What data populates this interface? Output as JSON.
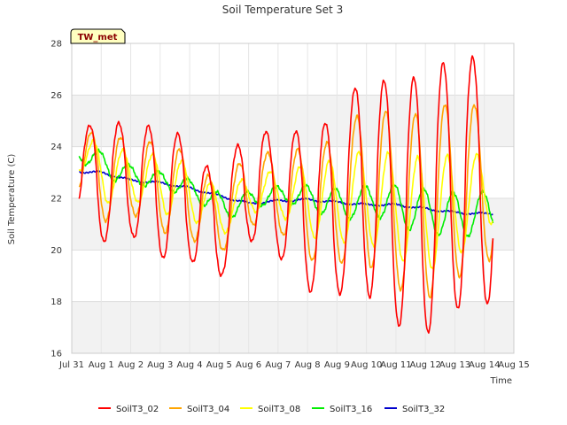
{
  "chart_data": {
    "type": "line",
    "title": "Soil Temperature Set 3",
    "xlabel": "Time",
    "ylabel": "Soil Temperature (C)",
    "site_label": "TW_met",
    "ylim": [
      16,
      28
    ],
    "xlim": [
      0,
      15
    ],
    "yticks": [
      16,
      18,
      20,
      22,
      24,
      26,
      28
    ],
    "xticks": [
      0,
      1,
      2,
      3,
      4,
      5,
      6,
      7,
      8,
      9,
      10,
      11,
      12,
      13,
      14,
      15
    ],
    "xtick_labels": [
      "Jul 31",
      "Aug 1",
      "Aug 2",
      "Aug 3",
      "Aug 4",
      "Aug 5",
      "Aug 6",
      "Aug 7",
      "Aug 8",
      "Aug 9",
      "Aug 10",
      "Aug 11",
      "Aug 12",
      "Aug 13",
      "Aug 14",
      "Aug 15"
    ],
    "grid": true,
    "background_bands": true,
    "legend_position": "bottom",
    "series": [
      {
        "name": "SoilT3_02",
        "color": "#ff0000"
      },
      {
        "name": "SoilT3_04",
        "color": "#ffa500"
      },
      {
        "name": "SoilT3_08",
        "color": "#ffff00"
      },
      {
        "name": "SoilT3_16",
        "color": "#00ee00"
      },
      {
        "name": "SoilT3_32",
        "color": "#0000cc"
      }
    ],
    "daily": {
      "days": [
        0,
        1,
        2,
        3,
        4,
        5,
        6,
        7,
        8,
        9,
        10,
        11,
        12,
        13,
        14
      ],
      "s02_min": [
        21.9,
        20.3,
        20.6,
        19.7,
        19.6,
        18.9,
        20.4,
        19.8,
        18.4,
        18.3,
        18.3,
        17.1,
        16.7,
        17.7,
        17.9
      ],
      "s02_max": [
        24.4,
        25.1,
        24.8,
        24.8,
        24.3,
        22.5,
        25.0,
        24.3,
        24.8,
        25.0,
        27.1,
        26.2,
        27.0,
        27.4,
        27.5
      ],
      "s04_min": [
        22.6,
        21.1,
        21.4,
        20.7,
        20.4,
        19.9,
        21.0,
        20.7,
        19.6,
        19.5,
        19.4,
        18.5,
        18.1,
        18.9,
        19.6
      ],
      "s04_max": [
        24.5,
        24.6,
        24.2,
        24.2,
        23.7,
        22.3,
        24.0,
        23.6,
        24.1,
        24.2,
        25.8,
        25.1,
        25.4,
        25.8,
        25.5
      ],
      "s08_min": [
        23.3,
        21.8,
        21.9,
        21.4,
        21.1,
        20.6,
        21.5,
        21.3,
        20.5,
        20.3,
        20.2,
        19.6,
        19.2,
        19.8,
        21.0
      ],
      "s08_max": [
        24.4,
        24.1,
        23.7,
        23.7,
        23.3,
        22.1,
        23.1,
        23.0,
        23.4,
        23.5,
        24.0,
        23.6,
        23.6,
        23.7,
        23.7
      ],
      "s16_min": [
        23.4,
        22.7,
        22.5,
        22.3,
        21.8,
        21.2,
        21.7,
        21.8,
        21.4,
        21.2,
        21.3,
        20.8,
        20.6,
        20.5,
        20.7
      ],
      "s16_max": [
        24.2,
        23.6,
        23.1,
        23.0,
        22.6,
        22.0,
        22.4,
        22.5,
        22.5,
        22.3,
        22.6,
        22.5,
        22.3,
        22.2,
        22.3
      ],
      "s32_mean": [
        23.05,
        23.0,
        22.7,
        22.6,
        22.4,
        22.1,
        21.8,
        21.9,
        21.95,
        21.85,
        21.75,
        21.75,
        21.6,
        21.45,
        21.4
      ]
    }
  }
}
